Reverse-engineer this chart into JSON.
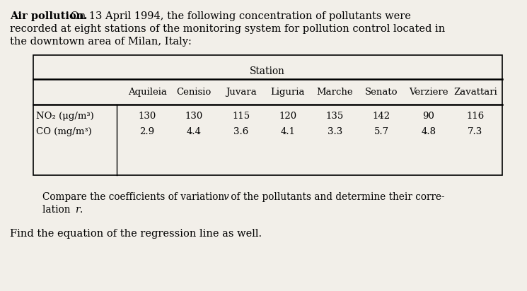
{
  "bg_color": "#f2efe9",
  "fs_body": 10.5,
  "fs_table": 9.8,
  "fs_small": 9.5,
  "table_stations": [
    "Aquileia",
    "Cenisio",
    "Juvara",
    "Liguria",
    "Marche",
    "Senato",
    "Verziere",
    "Zavattari"
  ],
  "row1_label": "NO₂ (μg/m³)",
  "row2_label": "CO (mg/m³)",
  "row1_first_val": "130",
  "row2_first_val": "2.9",
  "row1_values": [
    "130",
    "115",
    "120",
    "135",
    "142",
    "90",
    "116"
  ],
  "row2_values": [
    "4.4",
    "3.6",
    "4.1",
    "3.3",
    "5.7",
    "4.8",
    "7.3"
  ]
}
